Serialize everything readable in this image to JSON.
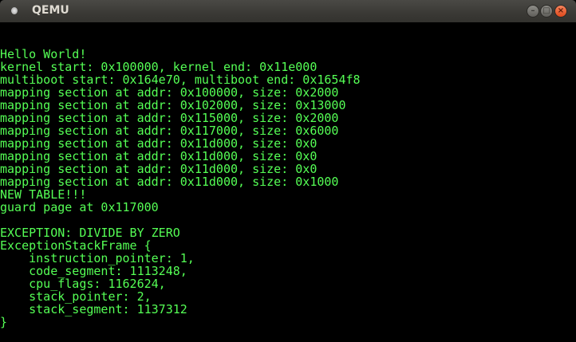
{
  "window": {
    "title": "QEMU",
    "minimize_label": "–",
    "maximize_label": "□",
    "close_label": "×"
  },
  "colors": {
    "text": "#55ff55",
    "background": "#000000"
  },
  "console_lines": [
    "Hello World!",
    "kernel start: 0x100000, kernel end: 0x11e000",
    "multiboot start: 0x164e70, multiboot end: 0x1654f8",
    "mapping section at addr: 0x100000, size: 0x2000",
    "mapping section at addr: 0x102000, size: 0x13000",
    "mapping section at addr: 0x115000, size: 0x2000",
    "mapping section at addr: 0x117000, size: 0x6000",
    "mapping section at addr: 0x11d000, size: 0x0",
    "mapping section at addr: 0x11d000, size: 0x0",
    "mapping section at addr: 0x11d000, size: 0x0",
    "mapping section at addr: 0x11d000, size: 0x1000",
    "NEW TABLE!!!",
    "guard page at 0x117000",
    "",
    "EXCEPTION: DIVIDE BY ZERO",
    "ExceptionStackFrame {",
    "    instruction_pointer: 1,",
    "    code_segment: 1113248,",
    "    cpu_flags: 1162624,",
    "    stack_pointer: 2,",
    "    stack_segment: 1137312",
    "}"
  ]
}
